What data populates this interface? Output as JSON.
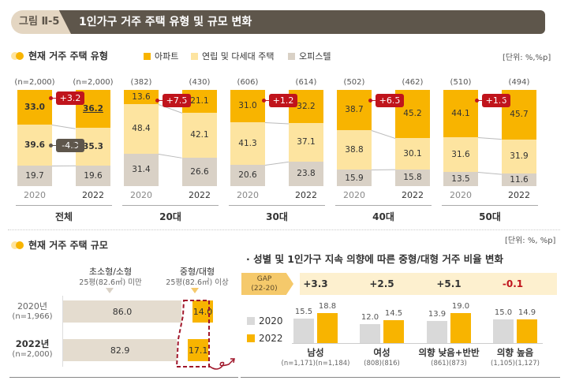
{
  "header": {
    "figure_label": "그림 Ⅱ-5",
    "title": "1인가구 거주 주택 유형 및 규모 변화"
  },
  "section1": {
    "title": "현재 거주 주택 유형",
    "unit": "[단위: %,%p]",
    "legend": [
      {
        "label": "아파트",
        "color": "#f8b400"
      },
      {
        "label": "연립 및 다세대 주택",
        "color": "#fde4a0"
      },
      {
        "label": "오피스텔",
        "color": "#d9d1c6"
      }
    ]
  },
  "section2": {
    "title": "현재 거주 주택 규모",
    "unit": "[단위: %, %p]",
    "categories": [
      {
        "head": "초소형/소형",
        "sub": "25평(82.6㎡) 미만"
      },
      {
        "head": "중형/대형",
        "sub": "25평(82.6㎡) 이상"
      }
    ],
    "rows": [
      {
        "year": "2020년",
        "n": "(n=1,966)",
        "small": "86.0",
        "large": "14.0"
      },
      {
        "year": "2022년",
        "n": "(n=2,000)",
        "small": "82.9",
        "large": "17.1"
      }
    ]
  },
  "section3": {
    "title": "· 성별 및 1인가구 지속 의향에 따른 중형/대형 거주 비율 변화",
    "gap_label_line1": "GAP",
    "gap_label_line2": "(22-20)",
    "legend": [
      {
        "label": "2020",
        "color": "#d9d9d9"
      },
      {
        "label": "2022",
        "color": "#f8b400"
      }
    ]
  },
  "chart_data": [
    {
      "type": "bar",
      "stacked": true,
      "normalized": true,
      "title": "현재 거주 주택 유형",
      "unit": "%,%p",
      "groups": [
        {
          "label": "전체",
          "bars": [
            {
              "year": "2020",
              "n": "(n=2,000)",
              "apartment": "33.0",
              "row_house": "39.6",
              "officetel": "19.7"
            },
            {
              "year": "2022",
              "n": "(n=2,000)",
              "apartment": "36.2",
              "row_house": "35.3",
              "officetel": "19.6"
            }
          ],
          "diffs": [
            {
              "series": "apartment",
              "value": "+3.2",
              "color": "#c0141c"
            },
            {
              "series": "row_house",
              "value": "-4.3",
              "color": "#5e564b"
            }
          ]
        },
        {
          "label": "20대",
          "bars": [
            {
              "year": "2020",
              "n": "(382)",
              "apartment": "13.6",
              "row_house": "48.4",
              "officetel": "31.4"
            },
            {
              "year": "2022",
              "n": "(430)",
              "apartment": "21.1",
              "row_house": "42.1",
              "officetel": "26.6"
            }
          ],
          "diffs": [
            {
              "series": "apartment",
              "value": "+7.5",
              "color": "#c0141c"
            }
          ]
        },
        {
          "label": "30대",
          "bars": [
            {
              "year": "2020",
              "n": "(606)",
              "apartment": "31.0",
              "row_house": "41.3",
              "officetel": "20.6"
            },
            {
              "year": "2022",
              "n": "(614)",
              "apartment": "32.2",
              "row_house": "37.1",
              "officetel": "23.8"
            }
          ],
          "diffs": [
            {
              "series": "apartment",
              "value": "+1.2",
              "color": "#c0141c"
            }
          ]
        },
        {
          "label": "40대",
          "bars": [
            {
              "year": "2020",
              "n": "(502)",
              "apartment": "38.7",
              "row_house": "38.8",
              "officetel": "15.9"
            },
            {
              "year": "2022",
              "n": "(462)",
              "apartment": "45.2",
              "row_house": "30.1",
              "officetel": "15.8"
            }
          ],
          "diffs": [
            {
              "series": "apartment",
              "value": "+6.5",
              "color": "#c0141c"
            }
          ]
        },
        {
          "label": "50대",
          "bars": [
            {
              "year": "2020",
              "n": "(510)",
              "apartment": "44.1",
              "row_house": "31.6",
              "officetel": "13.5"
            },
            {
              "year": "2022",
              "n": "(494)",
              "apartment": "45.7",
              "row_house": "31.9",
              "officetel": "11.6"
            }
          ],
          "diffs": [
            {
              "series": "apartment",
              "value": "+1.6",
              "color": "#c0141c"
            }
          ]
        }
      ],
      "series": [
        {
          "key": "apartment",
          "name": "아파트",
          "color": "#f8b400"
        },
        {
          "key": "row_house",
          "name": "연립 및 다세대 주택",
          "color": "#fde4a0"
        },
        {
          "key": "officetel",
          "name": "오피스텔",
          "color": "#d9d1c6"
        }
      ]
    },
    {
      "type": "bar",
      "orientation": "horizontal",
      "stacked": true,
      "title": "현재 거주 주택 규모",
      "categories": [
        "2020년 (n=1,966)",
        "2022년 (n=2,000)"
      ],
      "series": [
        {
          "name": "초소형/소형 25평(82.6㎡) 미만",
          "values": [
            86.0,
            82.9
          ],
          "color": "#e4dccf"
        },
        {
          "name": "중형/대형 25평(82.6㎡) 이상",
          "values": [
            14.0,
            17.1
          ],
          "color": "#f8b400"
        }
      ]
    },
    {
      "type": "bar",
      "title": "성별 및 1인가구 지속 의향에 따른 중형/대형 거주 비율 변화",
      "unit": "%, %p",
      "categories": [
        "남성",
        "여성",
        "의향 낮음+반반",
        "의향 높음"
      ],
      "category_n": [
        "(n=1,171)(n=1,184)",
        "(808)(816)",
        "(861)(873)",
        "(1,105)(1,127)"
      ],
      "series": [
        {
          "name": "2020",
          "values": [
            15.5,
            12.0,
            13.9,
            15.0
          ],
          "labels": [
            "15.5",
            "12.0",
            "13.9",
            "15.0"
          ],
          "color": "#d9d9d9"
        },
        {
          "name": "2022",
          "values": [
            18.8,
            14.5,
            19.0,
            14.9
          ],
          "labels": [
            "18.8",
            "14.5",
            "19.0",
            "14.9"
          ],
          "color": "#f8b400"
        }
      ],
      "gap": [
        "+3.3",
        "+2.5",
        "+5.1",
        "-0.1"
      ],
      "gap_colors": [
        "#333333",
        "#333333",
        "#333333",
        "#c0141c"
      ]
    }
  ]
}
